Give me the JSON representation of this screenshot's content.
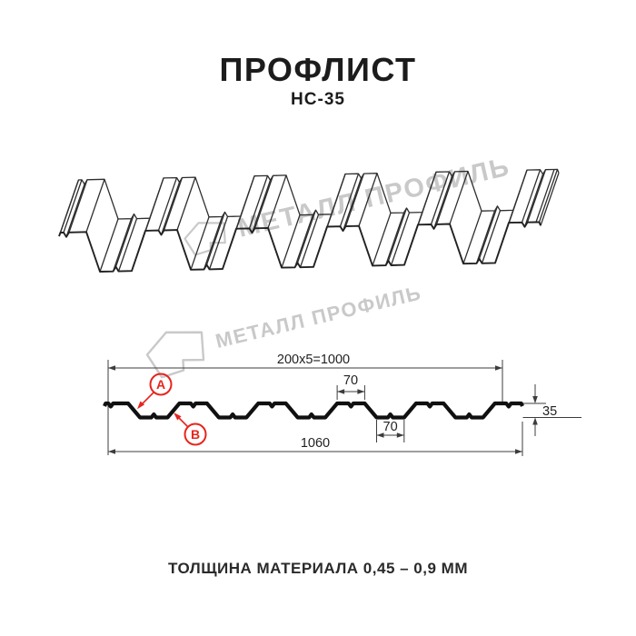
{
  "header": {
    "title": "ПРОФЛИСТ",
    "subtitle": "НС-35"
  },
  "watermark": {
    "text": "МЕТАЛЛ ПРОФИЛЬ"
  },
  "drawing": {
    "dims": {
      "module": "200x5=1000",
      "crest_width": "70",
      "valley_width": "70",
      "overall_width": "1060",
      "height": "35"
    },
    "annotations": {
      "a": "А",
      "b": "В"
    }
  },
  "footer": {
    "note": "ТОЛЩИНА МАТЕРИАЛА 0,45 – 0,9 ММ"
  },
  "colors": {
    "ink": "#1c1c1c",
    "line": "#2e2e2e",
    "profile": "#101010",
    "dim": "#3c3c3c",
    "accent_red": "#e6251e",
    "watermark": "#c9c9c9"
  }
}
